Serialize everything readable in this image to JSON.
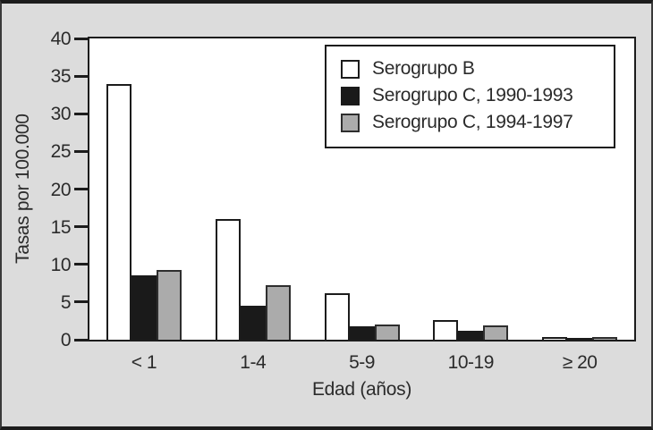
{
  "figure": {
    "bg_color": "#dcdcdc",
    "frame_color": "#1c1c1c",
    "plot_bg": "#ffffff",
    "text_color": "#2b2b2b"
  },
  "chart_data": {
    "type": "bar",
    "title": "",
    "xlabel": "Edad (años)",
    "ylabel": "Tasas por 100.000",
    "categories": [
      "< 1",
      "1-4",
      "5-9",
      "10-19",
      "≥ 20"
    ],
    "series": [
      {
        "name": "Serogrupo B",
        "fill": "#ffffff",
        "stroke": "#1c1c1c",
        "values": [
          34,
          16,
          6.2,
          2.6,
          0.4
        ]
      },
      {
        "name": "Serogrupo C, 1990-1993",
        "fill": "#1a1a1a",
        "stroke": "#1a1a1a",
        "values": [
          8.5,
          4.5,
          1.8,
          1.2,
          0.2
        ]
      },
      {
        "name": "Serogrupo C, 1994-1997",
        "fill": "#ababab",
        "stroke": "#2e2e2e",
        "values": [
          9.3,
          7.2,
          2.0,
          1.9,
          0.3
        ]
      }
    ],
    "ylim": [
      0,
      40
    ],
    "yticks": [
      0,
      5,
      10,
      15,
      20,
      25,
      30,
      35,
      40
    ],
    "grid": false,
    "legend_position": "top-right"
  }
}
